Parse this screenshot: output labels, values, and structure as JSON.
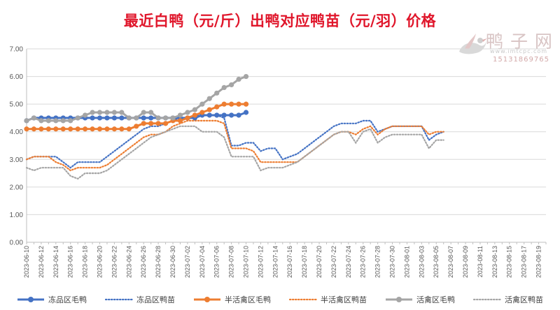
{
  "title": "最近白鸭（元/斤）出鸭对应鸭苗（元/羽）价格",
  "watermark": {
    "logo_text": "鸭 子 网",
    "site": "www.imtcpc.com",
    "phone": "15131869765"
  },
  "chart_data": {
    "type": "line",
    "title": "最近白鸭（元/斤）出鸭对应鸭苗（元/羽）价格",
    "xlabel": "",
    "ylabel": "",
    "ylim": [
      0,
      7
    ],
    "yticks": [
      "0.00",
      "1.00",
      "2.00",
      "3.00",
      "4.00",
      "5.00",
      "6.00",
      "7.00"
    ],
    "x_tick_labels": [
      "2023-06-10",
      "2023-06-12",
      "2023-06-14",
      "2023-06-16",
      "2023-06-18",
      "2023-06-20",
      "2023-06-22",
      "2023-06-24",
      "2023-06-26",
      "2023-06-28",
      "2023-06-30",
      "2023-07-02",
      "2023-07-04",
      "2023-07-06",
      "2023-07-08",
      "2023-07-10",
      "2023-07-12",
      "2023-07-14",
      "2023-07-16",
      "2023-07-18",
      "2023-07-20",
      "2023-07-22",
      "2023-07-24",
      "2023-07-26",
      "2023-07-28",
      "2023-07-30",
      "2023-08-01",
      "2023-08-03",
      "2023-08-05",
      "2023-08-07",
      "2023-08-09",
      "2023-08-11",
      "2023-08-13",
      "2023-08-15",
      "2023-08-17",
      "2023-08-19"
    ],
    "x_start": "2023-06-10",
    "x_end": "2023-08-20",
    "grid": "horizontal",
    "legend_position": "bottom",
    "series": [
      {
        "name": "冻品区毛鸭",
        "color": "#4472c4",
        "style": "solid-marker",
        "x": [
          "2023-06-10",
          "2023-06-11",
          "2023-06-12",
          "2023-06-13",
          "2023-06-14",
          "2023-06-15",
          "2023-06-16",
          "2023-06-17",
          "2023-06-18",
          "2023-06-19",
          "2023-06-20",
          "2023-06-21",
          "2023-06-22",
          "2023-06-23",
          "2023-06-24",
          "2023-06-25",
          "2023-06-26",
          "2023-06-27",
          "2023-06-28",
          "2023-06-29",
          "2023-06-30",
          "2023-07-01",
          "2023-07-02",
          "2023-07-03",
          "2023-07-04",
          "2023-07-05",
          "2023-07-06",
          "2023-07-07",
          "2023-07-08",
          "2023-07-09",
          "2023-07-10"
        ],
        "y": [
          4.4,
          4.5,
          4.5,
          4.5,
          4.5,
          4.5,
          4.5,
          4.5,
          4.5,
          4.5,
          4.5,
          4.5,
          4.5,
          4.5,
          4.5,
          4.5,
          4.5,
          4.5,
          4.5,
          4.5,
          4.5,
          4.5,
          4.5,
          4.5,
          4.6,
          4.6,
          4.6,
          4.6,
          4.6,
          4.6,
          4.7
        ]
      },
      {
        "name": "冻品区鸭苗",
        "color": "#4472c4",
        "style": "dotted",
        "x": [
          "2023-06-10",
          "2023-06-11",
          "2023-06-12",
          "2023-06-13",
          "2023-06-14",
          "2023-06-15",
          "2023-06-16",
          "2023-06-17",
          "2023-06-18",
          "2023-06-19",
          "2023-06-20",
          "2023-06-21",
          "2023-06-22",
          "2023-06-23",
          "2023-06-24",
          "2023-06-25",
          "2023-06-26",
          "2023-06-27",
          "2023-06-28",
          "2023-06-29",
          "2023-06-30",
          "2023-07-01",
          "2023-07-02",
          "2023-07-03",
          "2023-07-04",
          "2023-07-05",
          "2023-07-06",
          "2023-07-07",
          "2023-07-08",
          "2023-07-09",
          "2023-07-10",
          "2023-07-11",
          "2023-07-12",
          "2023-07-13",
          "2023-07-14",
          "2023-07-15",
          "2023-07-16",
          "2023-07-17",
          "2023-07-18",
          "2023-07-19",
          "2023-07-20",
          "2023-07-21",
          "2023-07-22",
          "2023-07-23",
          "2023-07-24",
          "2023-07-25",
          "2023-07-26",
          "2023-07-27",
          "2023-07-28",
          "2023-07-29",
          "2023-07-30",
          "2023-07-31",
          "2023-08-01",
          "2023-08-02",
          "2023-08-03",
          "2023-08-04",
          "2023-08-05",
          "2023-08-06"
        ],
        "y": [
          3.0,
          3.1,
          3.1,
          3.1,
          3.1,
          2.9,
          2.7,
          2.9,
          2.9,
          2.9,
          2.9,
          3.1,
          3.3,
          3.5,
          3.7,
          3.9,
          4.1,
          4.2,
          4.2,
          4.3,
          4.4,
          4.5,
          4.5,
          4.6,
          4.6,
          4.6,
          4.6,
          4.5,
          3.5,
          3.5,
          3.6,
          3.6,
          3.3,
          3.4,
          3.4,
          3.0,
          3.1,
          3.2,
          3.4,
          3.6,
          3.8,
          4.0,
          4.2,
          4.3,
          4.3,
          4.3,
          4.4,
          4.4,
          4.0,
          4.1,
          4.2,
          4.2,
          4.2,
          4.2,
          4.2,
          3.7,
          3.9,
          4.0
        ]
      },
      {
        "name": "半活禽区毛鸭",
        "color": "#ed7d31",
        "style": "solid-marker",
        "x": [
          "2023-06-10",
          "2023-06-11",
          "2023-06-12",
          "2023-06-13",
          "2023-06-14",
          "2023-06-15",
          "2023-06-16",
          "2023-06-17",
          "2023-06-18",
          "2023-06-19",
          "2023-06-20",
          "2023-06-21",
          "2023-06-22",
          "2023-06-23",
          "2023-06-24",
          "2023-06-25",
          "2023-06-26",
          "2023-06-27",
          "2023-06-28",
          "2023-06-29",
          "2023-06-30",
          "2023-07-01",
          "2023-07-02",
          "2023-07-03",
          "2023-07-04",
          "2023-07-05",
          "2023-07-06",
          "2023-07-07",
          "2023-07-08",
          "2023-07-09",
          "2023-07-10"
        ],
        "y": [
          4.1,
          4.1,
          4.1,
          4.1,
          4.1,
          4.1,
          4.1,
          4.1,
          4.1,
          4.1,
          4.1,
          4.1,
          4.1,
          4.1,
          4.1,
          4.2,
          4.3,
          4.3,
          4.3,
          4.3,
          4.4,
          4.4,
          4.5,
          4.6,
          4.7,
          4.8,
          4.9,
          5.0,
          5.0,
          5.0,
          5.0
        ]
      },
      {
        "name": "半活禽区鸭苗",
        "color": "#ed7d31",
        "style": "dotted",
        "x": [
          "2023-06-10",
          "2023-06-11",
          "2023-06-12",
          "2023-06-13",
          "2023-06-14",
          "2023-06-15",
          "2023-06-16",
          "2023-06-17",
          "2023-06-18",
          "2023-06-19",
          "2023-06-20",
          "2023-06-21",
          "2023-06-22",
          "2023-06-23",
          "2023-06-24",
          "2023-06-25",
          "2023-06-26",
          "2023-06-27",
          "2023-06-28",
          "2023-06-29",
          "2023-06-30",
          "2023-07-01",
          "2023-07-02",
          "2023-07-03",
          "2023-07-04",
          "2023-07-05",
          "2023-07-06",
          "2023-07-07",
          "2023-07-08",
          "2023-07-09",
          "2023-07-10",
          "2023-07-11",
          "2023-07-12",
          "2023-07-13",
          "2023-07-14",
          "2023-07-15",
          "2023-07-16",
          "2023-07-17",
          "2023-07-18",
          "2023-07-19",
          "2023-07-20",
          "2023-07-21",
          "2023-07-22",
          "2023-07-23",
          "2023-07-24",
          "2023-07-25",
          "2023-07-26",
          "2023-07-27",
          "2023-07-28",
          "2023-07-29",
          "2023-07-30",
          "2023-07-31",
          "2023-08-01",
          "2023-08-02",
          "2023-08-03",
          "2023-08-04",
          "2023-08-05",
          "2023-08-06"
        ],
        "y": [
          3.0,
          3.1,
          3.1,
          3.1,
          2.9,
          2.8,
          2.6,
          2.7,
          2.7,
          2.7,
          2.7,
          2.8,
          3.0,
          3.2,
          3.4,
          3.6,
          3.8,
          3.9,
          3.9,
          4.0,
          4.2,
          4.3,
          4.4,
          4.4,
          4.4,
          4.4,
          4.4,
          4.3,
          3.4,
          3.4,
          3.4,
          3.3,
          2.9,
          2.9,
          2.9,
          2.9,
          2.9,
          2.9,
          3.1,
          3.3,
          3.5,
          3.7,
          3.9,
          4.0,
          4.0,
          3.9,
          4.1,
          4.2,
          3.9,
          4.1,
          4.2,
          4.2,
          4.2,
          4.2,
          4.2,
          3.9,
          4.0,
          4.0
        ]
      },
      {
        "name": "活禽区毛鸭",
        "color": "#a5a5a5",
        "style": "solid-marker",
        "x": [
          "2023-06-10",
          "2023-06-11",
          "2023-06-12",
          "2023-06-13",
          "2023-06-14",
          "2023-06-15",
          "2023-06-16",
          "2023-06-17",
          "2023-06-18",
          "2023-06-19",
          "2023-06-20",
          "2023-06-21",
          "2023-06-22",
          "2023-06-23",
          "2023-06-24",
          "2023-06-25",
          "2023-06-26",
          "2023-06-27",
          "2023-06-28",
          "2023-06-29",
          "2023-06-30",
          "2023-07-01",
          "2023-07-02",
          "2023-07-03",
          "2023-07-04",
          "2023-07-05",
          "2023-07-06",
          "2023-07-07",
          "2023-07-08",
          "2023-07-09",
          "2023-07-10"
        ],
        "y": [
          4.4,
          4.5,
          4.4,
          4.4,
          4.4,
          4.4,
          4.4,
          4.5,
          4.6,
          4.7,
          4.7,
          4.7,
          4.7,
          4.7,
          4.5,
          4.5,
          4.7,
          4.7,
          4.5,
          4.5,
          4.5,
          4.6,
          4.7,
          4.8,
          5.0,
          5.2,
          5.4,
          5.6,
          5.7,
          5.9,
          6.0
        ]
      },
      {
        "name": "活禽区鸭苗",
        "color": "#a5a5a5",
        "style": "dotted",
        "x": [
          "2023-06-10",
          "2023-06-11",
          "2023-06-12",
          "2023-06-13",
          "2023-06-14",
          "2023-06-15",
          "2023-06-16",
          "2023-06-17",
          "2023-06-18",
          "2023-06-19",
          "2023-06-20",
          "2023-06-21",
          "2023-06-22",
          "2023-06-23",
          "2023-06-24",
          "2023-06-25",
          "2023-06-26",
          "2023-06-27",
          "2023-06-28",
          "2023-06-29",
          "2023-06-30",
          "2023-07-01",
          "2023-07-02",
          "2023-07-03",
          "2023-07-04",
          "2023-07-05",
          "2023-07-06",
          "2023-07-07",
          "2023-07-08",
          "2023-07-09",
          "2023-07-10",
          "2023-07-11",
          "2023-07-12",
          "2023-07-13",
          "2023-07-14",
          "2023-07-15",
          "2023-07-16",
          "2023-07-17",
          "2023-07-18",
          "2023-07-19",
          "2023-07-20",
          "2023-07-21",
          "2023-07-22",
          "2023-07-23",
          "2023-07-24",
          "2023-07-25",
          "2023-07-26",
          "2023-07-27",
          "2023-07-28",
          "2023-07-29",
          "2023-07-30",
          "2023-07-31",
          "2023-08-01",
          "2023-08-02",
          "2023-08-03",
          "2023-08-04",
          "2023-08-05",
          "2023-08-06"
        ],
        "y": [
          2.7,
          2.6,
          2.7,
          2.7,
          2.7,
          2.7,
          2.4,
          2.3,
          2.5,
          2.5,
          2.5,
          2.6,
          2.8,
          3.0,
          3.2,
          3.4,
          3.6,
          3.8,
          3.9,
          4.0,
          4.1,
          4.2,
          4.2,
          4.2,
          4.0,
          4.0,
          4.0,
          3.8,
          3.1,
          3.1,
          3.1,
          3.1,
          2.6,
          2.7,
          2.7,
          2.7,
          2.8,
          2.9,
          3.1,
          3.3,
          3.5,
          3.7,
          3.9,
          4.0,
          4.0,
          3.6,
          4.0,
          4.1,
          3.6,
          3.8,
          3.9,
          3.9,
          3.9,
          3.9,
          3.9,
          3.4,
          3.7,
          3.7
        ]
      }
    ]
  }
}
